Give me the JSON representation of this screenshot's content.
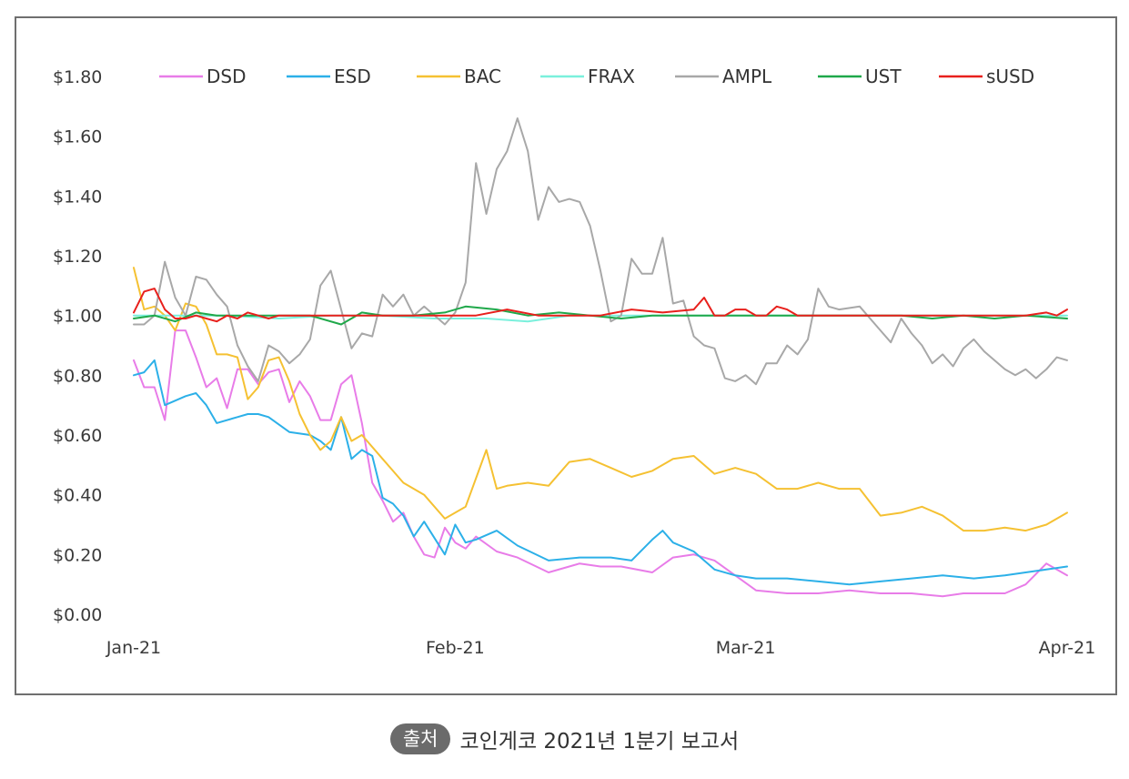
{
  "source": {
    "badge": "출처",
    "text": "코인게코 2021년 1분기 보고서"
  },
  "chart_data": {
    "type": "line",
    "title": "",
    "xlabel": "",
    "ylabel": "",
    "ylim": [
      0,
      1.8
    ],
    "yticks": [
      0,
      0.2,
      0.4,
      0.6,
      0.8,
      1.0,
      1.2,
      1.4,
      1.6,
      1.8
    ],
    "ytick_labels": [
      "$0.00",
      "$0.20",
      "$0.40",
      "$0.60",
      "$0.80",
      "$1.00",
      "$1.20",
      "$1.40",
      "$1.60",
      "$1.80"
    ],
    "xlim": [
      "2021-01-01",
      "2021-04-01"
    ],
    "xticks": [
      "2021-01-01",
      "2021-02-01",
      "2021-03-01",
      "2021-04-01"
    ],
    "xtick_labels": [
      "Jan-21",
      "Feb-21",
      "Mar-21",
      "Apr-21"
    ],
    "legend": "top",
    "grid": false,
    "series": [
      {
        "name": "DSD",
        "color": "#e87ce8",
        "x": [
          "2021-01-01",
          "2021-01-02",
          "2021-01-03",
          "2021-01-04",
          "2021-01-05",
          "2021-01-06",
          "2021-01-07",
          "2021-01-08",
          "2021-01-09",
          "2021-01-10",
          "2021-01-11",
          "2021-01-12",
          "2021-01-13",
          "2021-01-14",
          "2021-01-15",
          "2021-01-16",
          "2021-01-17",
          "2021-01-18",
          "2021-01-19",
          "2021-01-20",
          "2021-01-21",
          "2021-01-22",
          "2021-01-23",
          "2021-01-24",
          "2021-01-25",
          "2021-01-26",
          "2021-01-27",
          "2021-01-28",
          "2021-01-29",
          "2021-01-30",
          "2021-01-31",
          "2021-02-01",
          "2021-02-02",
          "2021-02-03",
          "2021-02-05",
          "2021-02-07",
          "2021-02-10",
          "2021-02-13",
          "2021-02-15",
          "2021-02-17",
          "2021-02-20",
          "2021-02-22",
          "2021-02-24",
          "2021-02-26",
          "2021-02-28",
          "2021-03-02",
          "2021-03-05",
          "2021-03-08",
          "2021-03-11",
          "2021-03-14",
          "2021-03-17",
          "2021-03-20",
          "2021-03-22",
          "2021-03-24",
          "2021-03-26",
          "2021-03-28",
          "2021-03-30",
          "2021-04-01"
        ],
        "values": [
          0.85,
          0.76,
          0.76,
          0.65,
          0.95,
          0.95,
          0.86,
          0.76,
          0.79,
          0.69,
          0.82,
          0.82,
          0.77,
          0.81,
          0.82,
          0.71,
          0.78,
          0.73,
          0.65,
          0.65,
          0.77,
          0.8,
          0.64,
          0.44,
          0.38,
          0.31,
          0.34,
          0.26,
          0.2,
          0.19,
          0.29,
          0.24,
          0.22,
          0.26,
          0.21,
          0.19,
          0.14,
          0.17,
          0.16,
          0.16,
          0.14,
          0.19,
          0.2,
          0.18,
          0.13,
          0.08,
          0.07,
          0.07,
          0.08,
          0.07,
          0.07,
          0.06,
          0.07,
          0.07,
          0.07,
          0.1,
          0.17,
          0.13
        ]
      },
      {
        "name": "ESD",
        "color": "#2cb0e8",
        "x": [
          "2021-01-01",
          "2021-01-02",
          "2021-01-03",
          "2021-01-04",
          "2021-01-06",
          "2021-01-07",
          "2021-01-08",
          "2021-01-09",
          "2021-01-11",
          "2021-01-12",
          "2021-01-13",
          "2021-01-14",
          "2021-01-16",
          "2021-01-18",
          "2021-01-19",
          "2021-01-20",
          "2021-01-21",
          "2021-01-22",
          "2021-01-23",
          "2021-01-24",
          "2021-01-25",
          "2021-01-26",
          "2021-01-27",
          "2021-01-28",
          "2021-01-29",
          "2021-01-31",
          "2021-02-01",
          "2021-02-02",
          "2021-02-03",
          "2021-02-05",
          "2021-02-07",
          "2021-02-10",
          "2021-02-13",
          "2021-02-16",
          "2021-02-18",
          "2021-02-20",
          "2021-02-21",
          "2021-02-22",
          "2021-02-24",
          "2021-02-26",
          "2021-02-28",
          "2021-03-02",
          "2021-03-05",
          "2021-03-08",
          "2021-03-11",
          "2021-03-14",
          "2021-03-17",
          "2021-03-20",
          "2021-03-23",
          "2021-03-26",
          "2021-03-28",
          "2021-03-30",
          "2021-04-01"
        ],
        "values": [
          0.8,
          0.81,
          0.85,
          0.7,
          0.73,
          0.74,
          0.7,
          0.64,
          0.66,
          0.67,
          0.67,
          0.66,
          0.61,
          0.6,
          0.58,
          0.55,
          0.66,
          0.52,
          0.55,
          0.53,
          0.39,
          0.37,
          0.33,
          0.26,
          0.31,
          0.2,
          0.3,
          0.24,
          0.25,
          0.28,
          0.23,
          0.18,
          0.19,
          0.19,
          0.18,
          0.25,
          0.28,
          0.24,
          0.21,
          0.15,
          0.13,
          0.12,
          0.12,
          0.11,
          0.1,
          0.11,
          0.12,
          0.13,
          0.12,
          0.13,
          0.14,
          0.15,
          0.16
        ]
      },
      {
        "name": "BAC",
        "color": "#f5c132",
        "x": [
          "2021-01-01",
          "2021-01-02",
          "2021-01-03",
          "2021-01-04",
          "2021-01-05",
          "2021-01-06",
          "2021-01-07",
          "2021-01-08",
          "2021-01-09",
          "2021-01-10",
          "2021-01-11",
          "2021-01-12",
          "2021-01-13",
          "2021-01-14",
          "2021-01-15",
          "2021-01-16",
          "2021-01-17",
          "2021-01-18",
          "2021-01-19",
          "2021-01-20",
          "2021-01-21",
          "2021-01-22",
          "2021-01-23",
          "2021-01-25",
          "2021-01-27",
          "2021-01-29",
          "2021-01-31",
          "2021-02-02",
          "2021-02-04",
          "2021-02-05",
          "2021-02-06",
          "2021-02-08",
          "2021-02-10",
          "2021-02-12",
          "2021-02-14",
          "2021-02-16",
          "2021-02-18",
          "2021-02-20",
          "2021-02-22",
          "2021-02-24",
          "2021-02-26",
          "2021-02-28",
          "2021-03-02",
          "2021-03-04",
          "2021-03-06",
          "2021-03-08",
          "2021-03-10",
          "2021-03-12",
          "2021-03-14",
          "2021-03-16",
          "2021-03-18",
          "2021-03-20",
          "2021-03-22",
          "2021-03-24",
          "2021-03-26",
          "2021-03-28",
          "2021-03-30",
          "2021-04-01"
        ],
        "values": [
          1.16,
          1.02,
          1.03,
          1.0,
          0.95,
          1.04,
          1.03,
          0.97,
          0.87,
          0.87,
          0.86,
          0.72,
          0.76,
          0.85,
          0.86,
          0.78,
          0.67,
          0.6,
          0.55,
          0.58,
          0.66,
          0.58,
          0.6,
          0.52,
          0.44,
          0.4,
          0.32,
          0.36,
          0.55,
          0.42,
          0.43,
          0.44,
          0.43,
          0.51,
          0.52,
          0.49,
          0.46,
          0.48,
          0.52,
          0.53,
          0.47,
          0.49,
          0.47,
          0.42,
          0.42,
          0.44,
          0.42,
          0.42,
          0.33,
          0.34,
          0.36,
          0.33,
          0.28,
          0.28,
          0.29,
          0.28,
          0.3,
          0.34
        ]
      },
      {
        "name": "FRAX",
        "color": "#7af0dc",
        "x": [
          "2021-01-01",
          "2021-01-05",
          "2021-01-10",
          "2021-01-15",
          "2021-01-20",
          "2021-01-25",
          "2021-01-30",
          "2021-02-04",
          "2021-02-08",
          "2021-02-12",
          "2021-02-16",
          "2021-02-20",
          "2021-02-24",
          "2021-02-28",
          "2021-03-04",
          "2021-03-08",
          "2021-03-12",
          "2021-03-16",
          "2021-03-20",
          "2021-03-24",
          "2021-03-28",
          "2021-04-01"
        ],
        "values": [
          1.0,
          1.0,
          1.0,
          0.99,
          1.0,
          1.0,
          0.99,
          0.99,
          0.98,
          1.0,
          1.0,
          1.0,
          1.0,
          1.0,
          1.0,
          1.0,
          1.0,
          1.0,
          1.0,
          1.0,
          1.0,
          1.0
        ]
      },
      {
        "name": "AMPL",
        "color": "#a8a8a8",
        "x": [
          "2021-01-01",
          "2021-01-02",
          "2021-01-03",
          "2021-01-04",
          "2021-01-05",
          "2021-01-06",
          "2021-01-07",
          "2021-01-08",
          "2021-01-09",
          "2021-01-10",
          "2021-01-11",
          "2021-01-12",
          "2021-01-13",
          "2021-01-14",
          "2021-01-15",
          "2021-01-16",
          "2021-01-17",
          "2021-01-18",
          "2021-01-19",
          "2021-01-20",
          "2021-01-21",
          "2021-01-22",
          "2021-01-23",
          "2021-01-24",
          "2021-01-25",
          "2021-01-26",
          "2021-01-27",
          "2021-01-28",
          "2021-01-29",
          "2021-01-31",
          "2021-02-01",
          "2021-02-02",
          "2021-02-03",
          "2021-02-04",
          "2021-02-05",
          "2021-02-06",
          "2021-02-07",
          "2021-02-08",
          "2021-02-09",
          "2021-02-10",
          "2021-02-11",
          "2021-02-12",
          "2021-02-13",
          "2021-02-14",
          "2021-02-15",
          "2021-02-16",
          "2021-02-17",
          "2021-02-18",
          "2021-02-19",
          "2021-02-20",
          "2021-02-21",
          "2021-02-22",
          "2021-02-23",
          "2021-02-24",
          "2021-02-25",
          "2021-02-26",
          "2021-02-27",
          "2021-02-28",
          "2021-03-01",
          "2021-03-02",
          "2021-03-03",
          "2021-03-04",
          "2021-03-05",
          "2021-03-06",
          "2021-03-07",
          "2021-03-08",
          "2021-03-09",
          "2021-03-10",
          "2021-03-12",
          "2021-03-14",
          "2021-03-15",
          "2021-03-16",
          "2021-03-17",
          "2021-03-18",
          "2021-03-19",
          "2021-03-20",
          "2021-03-21",
          "2021-03-22",
          "2021-03-23",
          "2021-03-24",
          "2021-03-26",
          "2021-03-27",
          "2021-03-28",
          "2021-03-29",
          "2021-03-30",
          "2021-03-31",
          "2021-04-01"
        ],
        "values": [
          0.97,
          0.97,
          1.0,
          1.18,
          1.06,
          1.0,
          1.13,
          1.12,
          1.07,
          1.03,
          0.9,
          0.83,
          0.78,
          0.9,
          0.88,
          0.84,
          0.87,
          0.92,
          1.1,
          1.15,
          1.02,
          0.89,
          0.94,
          0.93,
          1.07,
          1.03,
          1.07,
          1.0,
          1.03,
          0.97,
          1.01,
          1.11,
          1.51,
          1.34,
          1.49,
          1.55,
          1.66,
          1.55,
          1.32,
          1.43,
          1.38,
          1.39,
          1.38,
          1.3,
          1.15,
          0.98,
          1.0,
          1.19,
          1.14,
          1.14,
          1.26,
          1.04,
          1.05,
          0.93,
          0.9,
          0.89,
          0.79,
          0.78,
          0.8,
          0.77,
          0.84,
          0.84,
          0.9,
          0.87,
          0.92,
          1.09,
          1.03,
          1.02,
          1.03,
          0.95,
          0.91,
          0.99,
          0.94,
          0.9,
          0.84,
          0.87,
          0.83,
          0.89,
          0.92,
          0.88,
          0.82,
          0.8,
          0.82,
          0.79,
          0.82,
          0.86,
          0.85
        ]
      },
      {
        "name": "UST",
        "color": "#1fa84a",
        "x": [
          "2021-01-01",
          "2021-01-03",
          "2021-01-05",
          "2021-01-07",
          "2021-01-09",
          "2021-01-12",
          "2021-01-15",
          "2021-01-18",
          "2021-01-21",
          "2021-01-23",
          "2021-01-25",
          "2021-01-28",
          "2021-01-31",
          "2021-02-02",
          "2021-02-05",
          "2021-02-08",
          "2021-02-11",
          "2021-02-14",
          "2021-02-17",
          "2021-02-20",
          "2021-02-23",
          "2021-02-26",
          "2021-03-01",
          "2021-03-04",
          "2021-03-07",
          "2021-03-10",
          "2021-03-13",
          "2021-03-16",
          "2021-03-19",
          "2021-03-22",
          "2021-03-25",
          "2021-03-28",
          "2021-04-01"
        ],
        "values": [
          0.99,
          1.0,
          0.98,
          1.01,
          1.0,
          1.0,
          1.0,
          1.0,
          0.97,
          1.01,
          1.0,
          1.0,
          1.01,
          1.03,
          1.02,
          1.0,
          1.01,
          1.0,
          0.99,
          1.0,
          1.0,
          1.0,
          1.0,
          1.0,
          1.0,
          1.0,
          1.0,
          1.0,
          0.99,
          1.0,
          0.99,
          1.0,
          0.99
        ]
      },
      {
        "name": "sUSD",
        "color": "#e8201c",
        "x": [
          "2021-01-01",
          "2021-01-02",
          "2021-01-03",
          "2021-01-04",
          "2021-01-05",
          "2021-01-06",
          "2021-01-07",
          "2021-01-08",
          "2021-01-09",
          "2021-01-10",
          "2021-01-11",
          "2021-01-12",
          "2021-01-13",
          "2021-01-14",
          "2021-01-15",
          "2021-01-17",
          "2021-01-19",
          "2021-01-21",
          "2021-01-23",
          "2021-01-25",
          "2021-01-28",
          "2021-01-31",
          "2021-02-03",
          "2021-02-06",
          "2021-02-09",
          "2021-02-12",
          "2021-02-15",
          "2021-02-18",
          "2021-02-21",
          "2021-02-24",
          "2021-02-25",
          "2021-02-26",
          "2021-02-27",
          "2021-02-28",
          "2021-03-01",
          "2021-03-02",
          "2021-03-03",
          "2021-03-04",
          "2021-03-05",
          "2021-03-06",
          "2021-03-08",
          "2021-03-11",
          "2021-03-14",
          "2021-03-17",
          "2021-03-20",
          "2021-03-23",
          "2021-03-26",
          "2021-03-28",
          "2021-03-30",
          "2021-03-31",
          "2021-04-01"
        ],
        "values": [
          1.01,
          1.08,
          1.09,
          1.02,
          0.99,
          0.99,
          1.0,
          0.99,
          0.98,
          1.0,
          0.99,
          1.01,
          1.0,
          0.99,
          1.0,
          1.0,
          1.0,
          1.0,
          1.0,
          1.0,
          1.0,
          1.0,
          1.0,
          1.02,
          1.0,
          1.0,
          1.0,
          1.02,
          1.01,
          1.02,
          1.06,
          1.0,
          1.0,
          1.02,
          1.02,
          1.0,
          1.0,
          1.03,
          1.02,
          1.0,
          1.0,
          1.0,
          1.0,
          1.0,
          1.0,
          1.0,
          1.0,
          1.0,
          1.01,
          1.0,
          1.02
        ]
      }
    ]
  }
}
